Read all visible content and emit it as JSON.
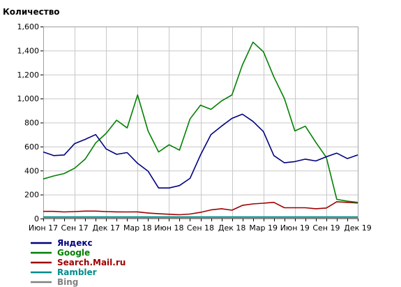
{
  "chart_data": {
    "type": "line",
    "title": "",
    "ylabel": "Количество",
    "xlabel": "",
    "ylim": [
      0,
      1600
    ],
    "yticks": [
      0,
      200,
      400,
      600,
      800,
      1000,
      1200,
      1400,
      1600
    ],
    "ytick_labels": [
      "0",
      "200",
      "400",
      "600",
      "800",
      "1,000",
      "1,200",
      "1,400",
      "1,600"
    ],
    "grid": true,
    "legend_position": "bottom-left",
    "categories": [
      "Июн 17",
      "Июл 17",
      "Авг 17",
      "Сен 17",
      "Окт 17",
      "Ноя 17",
      "Дек 17",
      "Янв 18",
      "Фев 18",
      "Мар 18",
      "Апр 18",
      "Май 18",
      "Июн 18",
      "Июл 18",
      "Авг 18",
      "Сен 18",
      "Окт 18",
      "Ноя 18",
      "Дек 18",
      "Янв 19",
      "Фев 19",
      "Мар 19",
      "Апр 19",
      "Май 19",
      "Июн 19",
      "Июл 19",
      "Авг 19",
      "Сен 19",
      "Окт 19",
      "Ноя 19",
      "Дек 19"
    ],
    "x_tick_labels": [
      {
        "index": 0,
        "label": "Июн 17"
      },
      {
        "index": 3,
        "label": "Сен 17"
      },
      {
        "index": 6,
        "label": "Дек 17"
      },
      {
        "index": 9,
        "label": "Мар 18"
      },
      {
        "index": 12,
        "label": "Июн 18"
      },
      {
        "index": 15,
        "label": "Сен 18"
      },
      {
        "index": 18,
        "label": "Дек 18"
      },
      {
        "index": 21,
        "label": "Мар 19"
      },
      {
        "index": 24,
        "label": "Июн 19"
      },
      {
        "index": 27,
        "label": "Сен 19"
      },
      {
        "index": 30,
        "label": "Дек 19"
      }
    ],
    "series": [
      {
        "name": "Яндекс",
        "color": "#000080",
        "values": [
          555,
          525,
          530,
          625,
          660,
          700,
          580,
          535,
          550,
          460,
          395,
          255,
          255,
          275,
          335,
          530,
          700,
          770,
          835,
          870,
          810,
          725,
          525,
          465,
          475,
          495,
          480,
          515,
          545,
          500,
          530
        ]
      },
      {
        "name": "Google",
        "color": "#008000",
        "values": [
          330,
          355,
          375,
          420,
          495,
          630,
          710,
          820,
          755,
          1030,
          730,
          555,
          615,
          570,
          830,
          945,
          910,
          980,
          1030,
          1280,
          1470,
          1390,
          1180,
          1000,
          730,
          770,
          635,
          510,
          160,
          145,
          135
        ]
      },
      {
        "name": "Search.Mail.ru",
        "color": "#a00000",
        "values": [
          60,
          60,
          55,
          58,
          62,
          62,
          58,
          56,
          55,
          56,
          46,
          40,
          36,
          32,
          38,
          52,
          72,
          82,
          70,
          110,
          122,
          128,
          135,
          90,
          90,
          90,
          82,
          88,
          140,
          135,
          130
        ]
      },
      {
        "name": "Rambler",
        "color": "#008b8b",
        "values": [
          14,
          14,
          14,
          14,
          14,
          14,
          14,
          14,
          14,
          14,
          14,
          14,
          14,
          14,
          14,
          14,
          14,
          14,
          14,
          14,
          14,
          14,
          14,
          14,
          14,
          14,
          14,
          14,
          14,
          14,
          14
        ]
      },
      {
        "name": "Bing",
        "color": "#808080",
        "values": [
          4,
          4,
          4,
          4,
          4,
          4,
          4,
          4,
          4,
          4,
          4,
          4,
          4,
          4,
          4,
          4,
          4,
          4,
          4,
          4,
          4,
          4,
          4,
          4,
          4,
          4,
          4,
          4,
          4,
          4,
          4
        ]
      }
    ]
  }
}
